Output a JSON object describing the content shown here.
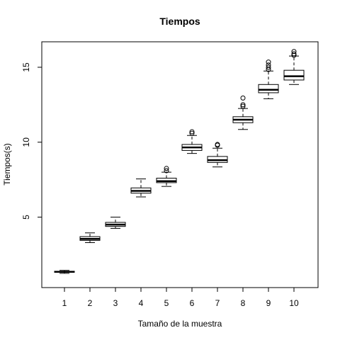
{
  "chart_data": {
    "type": "boxplot",
    "title": "Tiempos",
    "xlabel": "Tamaño de la muestra",
    "ylabel": "Tiempos(s)",
    "categories": [
      "1",
      "2",
      "3",
      "4",
      "5",
      "6",
      "7",
      "8",
      "9",
      "10"
    ],
    "ylim": [
      0.3,
      16.7
    ],
    "yticks": [
      "5",
      "10",
      "15"
    ],
    "boxes": [
      {
        "category": "1",
        "whisker_low": 1.25,
        "q1": 1.32,
        "median": 1.35,
        "q3": 1.39,
        "whisker_high": 1.45,
        "outliers": []
      },
      {
        "category": "2",
        "whisker_low": 3.3,
        "q1": 3.45,
        "median": 3.55,
        "q3": 3.7,
        "whisker_high": 3.95,
        "outliers": []
      },
      {
        "category": "3",
        "whisker_low": 4.25,
        "q1": 4.38,
        "median": 4.5,
        "q3": 4.65,
        "whisker_high": 5.0,
        "outliers": []
      },
      {
        "category": "4",
        "whisker_low": 6.35,
        "q1": 6.6,
        "median": 6.75,
        "q3": 6.95,
        "whisker_high": 7.55,
        "outliers": []
      },
      {
        "category": "5",
        "whisker_low": 7.05,
        "q1": 7.3,
        "median": 7.4,
        "q3": 7.6,
        "whisker_high": 8.0,
        "outliers": [
          8.1,
          8.25
        ]
      },
      {
        "category": "6",
        "whisker_low": 9.25,
        "q1": 9.45,
        "median": 9.65,
        "q3": 9.85,
        "whisker_high": 10.45,
        "outliers": [
          10.6,
          10.7
        ]
      },
      {
        "category": "7",
        "whisker_low": 8.35,
        "q1": 8.65,
        "median": 8.8,
        "q3": 9.05,
        "whisker_high": 9.6,
        "outliers": [
          9.8,
          9.85
        ]
      },
      {
        "category": "8",
        "whisker_low": 10.85,
        "q1": 11.3,
        "median": 11.5,
        "q3": 11.7,
        "whisker_high": 12.25,
        "outliers": [
          12.4,
          12.5,
          12.95
        ]
      },
      {
        "category": "9",
        "whisker_low": 12.9,
        "q1": 13.3,
        "median": 13.5,
        "q3": 13.85,
        "whisker_high": 14.75,
        "outliers": [
          14.85,
          15.0,
          15.15,
          15.35
        ]
      },
      {
        "category": "10",
        "whisker_low": 13.85,
        "q1": 14.15,
        "median": 14.4,
        "q3": 14.8,
        "whisker_high": 15.75,
        "outliers": [
          15.8,
          15.9,
          16.05
        ]
      }
    ],
    "grid": false,
    "legend": "none",
    "colors": {
      "box_fill": "#ffffff",
      "line": "#000000"
    }
  }
}
